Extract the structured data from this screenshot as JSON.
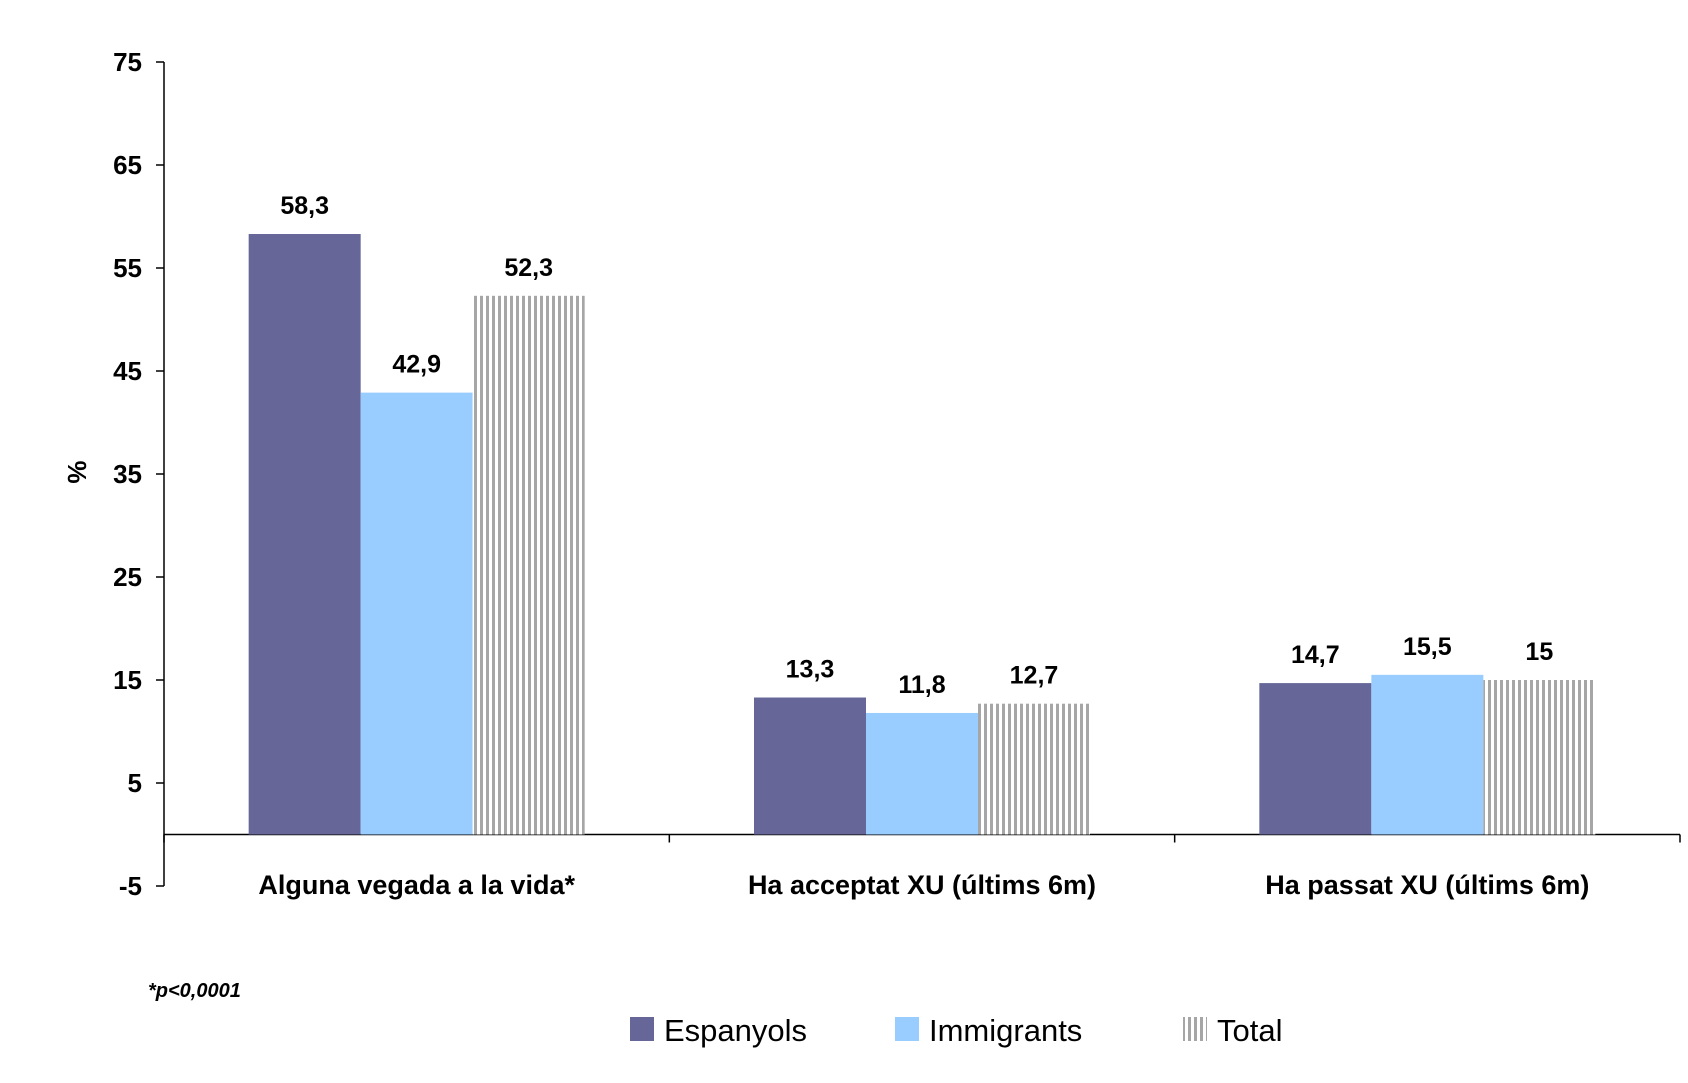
{
  "chart_data": {
    "type": "bar",
    "categories": [
      "Alguna vegada a la vida*",
      "Ha acceptat XU (últims 6m)",
      "Ha passat XU (últims 6m)"
    ],
    "series": [
      {
        "name": "Espanyols",
        "values": [
          58.3,
          13.3,
          14.7
        ],
        "labels": [
          "58,3",
          "13,3",
          "14,7"
        ],
        "color": "#666699",
        "pattern": "solid"
      },
      {
        "name": "Immigrants",
        "values": [
          42.9,
          11.8,
          15.5
        ],
        "labels": [
          "42,9",
          "11,8",
          "15,5"
        ],
        "color": "#99ccff",
        "pattern": "solid"
      },
      {
        "name": "Total",
        "values": [
          52.3,
          12.7,
          15
        ],
        "labels": [
          "52,3",
          "12,7",
          "15"
        ],
        "color": "#999999",
        "pattern": "vertical-stripes"
      }
    ],
    "ylabel": "%",
    "ylim": [
      -5,
      75
    ],
    "yticks": [
      75,
      65,
      55,
      45,
      35,
      25,
      15,
      5,
      -5
    ],
    "legend_position": "bottom",
    "grid": false,
    "footnote": "*p<0,0001"
  }
}
